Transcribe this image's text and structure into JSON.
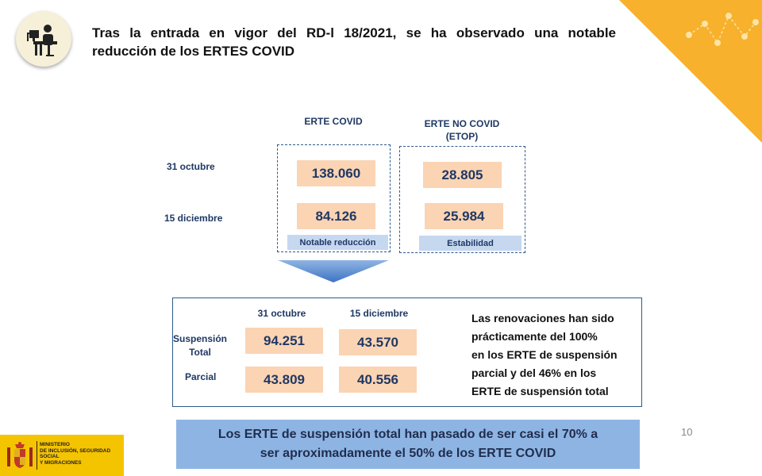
{
  "header": {
    "title_line1": "Tras la entrada en vigor del RD-l 18/2021, se ha observado una notable",
    "title_line2": "reducción de los ERTES COVID",
    "icon": "person-at-desk-icon"
  },
  "top": {
    "col_covid": "ERTE COVID",
    "col_nocovid_line1": "ERTE NO COVID",
    "col_nocovid_line2": "(ETOP)",
    "rows": [
      "31 octubre",
      "15 diciembre"
    ],
    "covid_values": [
      "138.060",
      "84.126"
    ],
    "nocovid_values": [
      "28.805",
      "25.984"
    ],
    "covid_tag": "Notable reducción",
    "nocovid_tag": "Estabilidad"
  },
  "bottom": {
    "col1": "31 octubre",
    "col2": "15 diciembre",
    "row1_line1": "Suspensión",
    "row1_line2": "Total",
    "row2": "Parcial",
    "total_values": [
      "94.251",
      "43.570"
    ],
    "parcial_values": [
      "43.809",
      "40.556"
    ],
    "note_lines": [
      "Las renovaciones han sido",
      "prácticamente del 100%",
      "en los ERTE de suspensión",
      "parcial y del 46% en los",
      "ERTE de suspensión total"
    ]
  },
  "band": {
    "line1": "Los ERTE de suspensión total han pasado de ser casi el 70% a",
    "line2": "ser aproximadamente  el 50% de los ERTE COVID"
  },
  "page_number": "10",
  "logo": {
    "line1": "MINISTERIO",
    "line2": "DE INCLUSIÓN, SEGURIDAD SOCIAL",
    "line3": "Y MIGRACIONES",
    "emblem": "coat-of-arms-icon"
  },
  "colors": {
    "value_fill": "#fbd4b4",
    "tag_fill": "#c6d7f0",
    "band_fill": "#8eb4e3",
    "accent_orange": "#f7b12d",
    "logo_yellow": "#f5c400"
  }
}
